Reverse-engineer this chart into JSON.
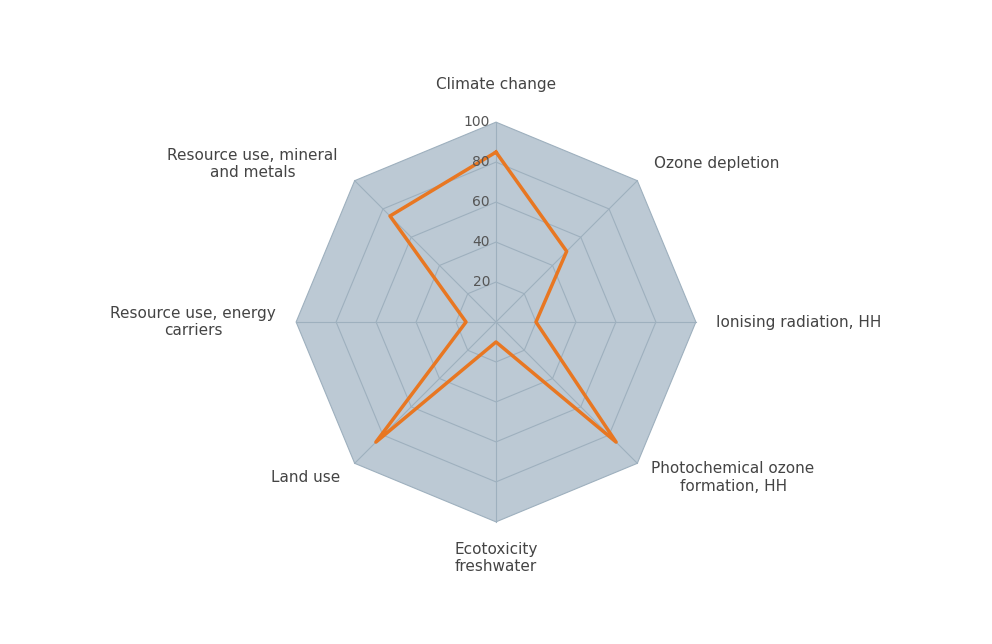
{
  "categories": [
    "Climate change",
    "Ozone depletion",
    "Ionising radiation, HH",
    "Photochemical ozone\nformation, HH",
    "Ecotoxicity\nfreshwater",
    "Land use",
    "Resource use, energy\ncarriers",
    "Resource use, mineral\nand metals"
  ],
  "values": [
    85,
    50,
    20,
    85,
    10,
    85,
    15,
    75
  ],
  "max_value": 100,
  "grid_values": [
    20,
    40,
    60,
    80,
    100
  ],
  "orange_color": "#E87722",
  "fill_color": "#BCC9D4",
  "grid_line_color": "#9EB0BE",
  "background_color": "#FFFFFF",
  "label_fontsize": 11,
  "tick_fontsize": 10,
  "tick_color": "#555555"
}
